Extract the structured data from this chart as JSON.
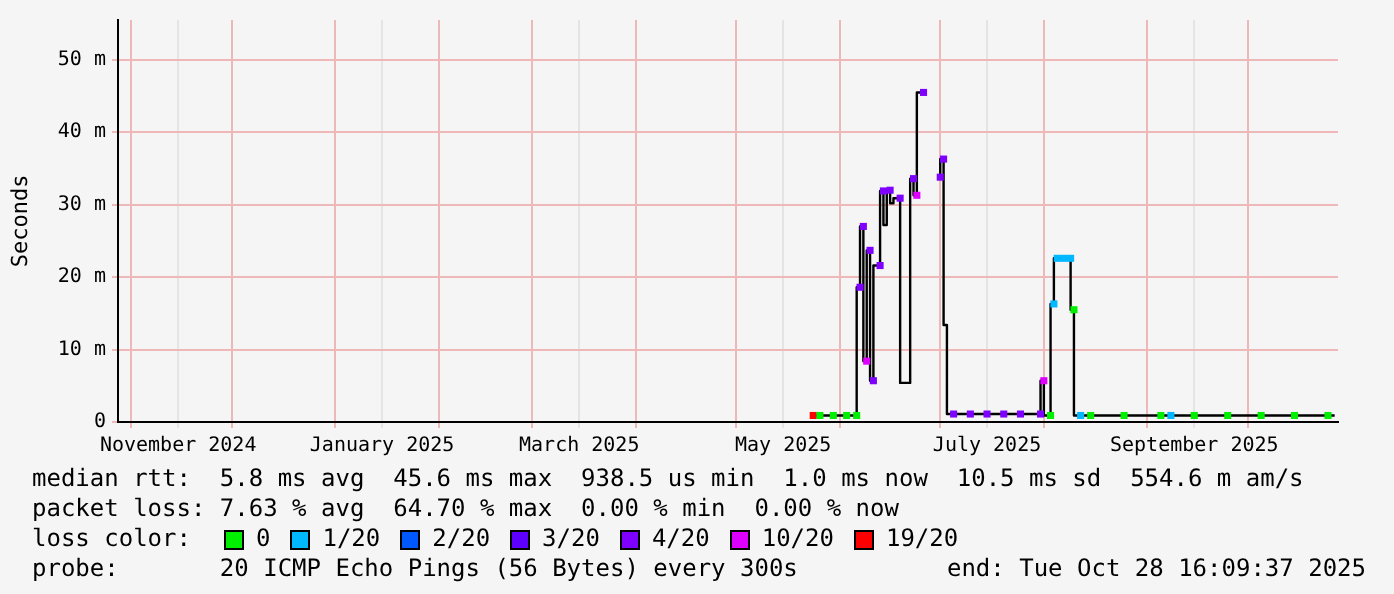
{
  "chart_data": {
    "type": "step",
    "ylabel": "Seconds",
    "legend": "bottom",
    "legend_title": "loss color:",
    "grid": true,
    "xlim": [
      "2024-10-28",
      "2025-10-28"
    ],
    "xticks": [
      {
        "value": "2024-11-01",
        "label": null
      },
      {
        "value": "2024-11-15",
        "label": "November 2024"
      },
      {
        "value": "2024-12-01",
        "label": null
      },
      {
        "value": "2025-01-01",
        "label": null
      },
      {
        "value": "2025-01-15",
        "label": "January 2025"
      },
      {
        "value": "2025-02-01",
        "label": null
      },
      {
        "value": "2025-03-01",
        "label": null
      },
      {
        "value": "2025-03-15",
        "label": "March 2025"
      },
      {
        "value": "2025-04-01",
        "label": null
      },
      {
        "value": "2025-05-01",
        "label": null
      },
      {
        "value": "2025-05-15",
        "label": "May 2025"
      },
      {
        "value": "2025-06-01",
        "label": null
      },
      {
        "value": "2025-07-01",
        "label": null
      },
      {
        "value": "2025-07-15",
        "label": "July 2025"
      },
      {
        "value": "2025-08-01",
        "label": null
      },
      {
        "value": "2025-09-01",
        "label": null
      },
      {
        "value": "2025-09-15",
        "label": "September 2025"
      },
      {
        "value": "2025-10-01",
        "label": null
      }
    ],
    "ylim": [
      0,
      55.5
    ],
    "yticks": [
      0,
      {
        "value": 10,
        "label": "10 m"
      },
      {
        "value": 20,
        "label": "20 m"
      },
      {
        "value": 30,
        "label": "30 m"
      },
      {
        "value": 40,
        "label": "40 m"
      },
      {
        "value": 50,
        "label": "50 m"
      }
    ],
    "series": [
      {
        "color": "#000000",
        "x": [
          "2025-05-24",
          "2025-06-06",
          "2025-06-07",
          "2025-06-08",
          "2025-06-09",
          "2025-06-10",
          "2025-06-11",
          "2025-06-13",
          "2025-06-14",
          "2025-06-15",
          "2025-06-16",
          "2025-06-17",
          "2025-06-19",
          "2025-06-22",
          "2025-06-23",
          "2025-06-24",
          "2025-06-26",
          "2025-06-28",
          "2025-07-01",
          "2025-07-02",
          "2025-07-03",
          "2025-07-05",
          "2025-07-10",
          "2025-07-15",
          "2025-07-20",
          "2025-07-25",
          "2025-07-31",
          "2025-08-01",
          "2025-08-03",
          "2025-08-04",
          "2025-08-05",
          "2025-08-09",
          "2025-08-10",
          "2025-08-11",
          "2025-09-01",
          "2025-10-01",
          "2025-10-27"
        ],
        "values": [
          0.9,
          0.9,
          18.6,
          27,
          8.4,
          23.7,
          5.7,
          21.6,
          31.9,
          27.2,
          32,
          30.2,
          30.9,
          5.4,
          33.6,
          31.3,
          45.5,
          null,
          33.8,
          36.3,
          13.4,
          1.1,
          1.1,
          1.1,
          1.1,
          1.1,
          1.1,
          5.7,
          0.9,
          16.3,
          22.6,
          22.6,
          15.5,
          0.9,
          0.9,
          0.9,
          0.9
        ]
      },
      {
        "type": "scatter",
        "marker": "square",
        "name": "0",
        "color": "#00ee00",
        "x": [
          "2025-05-26",
          "2025-05-30",
          "2025-06-03",
          "2025-06-06",
          "2025-08-03",
          "2025-08-10",
          "2025-08-15",
          "2025-08-25",
          "2025-09-05",
          "2025-09-15",
          "2025-09-25",
          "2025-10-05",
          "2025-10-15",
          "2025-10-25"
        ],
        "values": [
          0.9,
          0.9,
          0.9,
          0.9,
          0.9,
          15.5,
          0.9,
          0.9,
          0.9,
          0.9,
          0.9,
          0.9,
          0.9,
          0.9
        ]
      },
      {
        "type": "scatter",
        "marker": "square",
        "name": "1/20",
        "color": "#00b8ff",
        "x": [
          "2025-08-04",
          "2025-08-05",
          "2025-08-07",
          "2025-08-09",
          "2025-08-12",
          "2025-09-08"
        ],
        "values": [
          16.3,
          22.6,
          22.6,
          22.6,
          0.9,
          0.9
        ]
      },
      {
        "type": "scatter",
        "marker": "square",
        "name": "2/20",
        "color": "#0059ff"
      },
      {
        "type": "scatter",
        "marker": "square",
        "name": "3/20",
        "color": "#5e00ff"
      },
      {
        "type": "scatter",
        "marker": "square",
        "name": "4/20",
        "color": "#7e00ff",
        "x": [
          "2025-06-07",
          "2025-06-08",
          "2025-06-10",
          "2025-06-11",
          "2025-06-13",
          "2025-06-14",
          "2025-06-16",
          "2025-06-19",
          "2025-06-23",
          "2025-06-26",
          "2025-07-01",
          "2025-07-02",
          "2025-07-05",
          "2025-07-10",
          "2025-07-15",
          "2025-07-20",
          "2025-07-25",
          "2025-07-31"
        ],
        "values": [
          18.6,
          27,
          23.7,
          5.7,
          21.6,
          31.9,
          32,
          30.9,
          33.6,
          45.5,
          33.8,
          36.3,
          1.1,
          1.1,
          1.1,
          1.1,
          1.1,
          1.1
        ]
      },
      {
        "type": "scatter",
        "marker": "square",
        "name": "10/20",
        "color": "#dd00ff",
        "x": [
          "2025-06-09",
          "2025-06-24",
          "2025-08-01"
        ],
        "values": [
          8.4,
          31.3,
          5.7
        ]
      },
      {
        "type": "scatter",
        "marker": "square",
        "name": "19/20",
        "color": "#ff0000",
        "x": [
          "2025-05-24"
        ],
        "values": [
          0.9
        ]
      }
    ],
    "annotations": [
      "median rtt:  5.8 ms avg  45.6 ms max  938.5 us min  1.0 ms now  10.5 ms sd  554.6 m am/s",
      "packet loss: 7.63 % avg  64.70 % max  0.00 % min  0.00 % now",
      "probe:       20 ICMP Echo Pings (56 Bytes) every 300s",
      "end: Tue Oct 28 16:09:37 2025"
    ]
  }
}
